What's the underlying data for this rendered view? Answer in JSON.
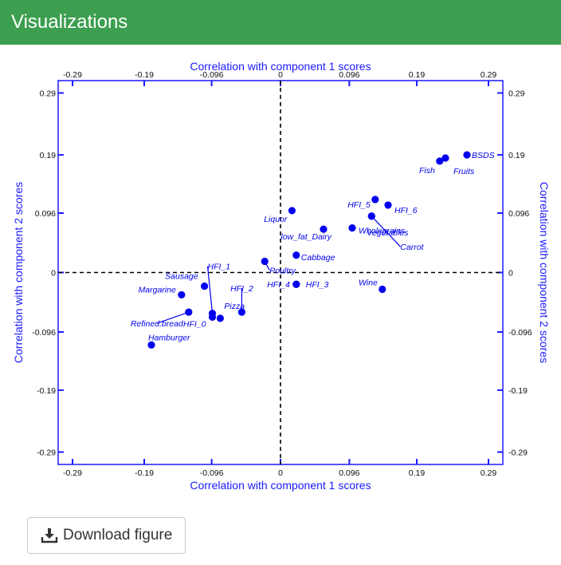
{
  "header": {
    "title": "Visualizations"
  },
  "buttons": {
    "download_label": "Download figure",
    "download_icon": "download-icon"
  },
  "colors": {
    "header_bg": "#3c9e4f",
    "plot_blue": "#1a1aff",
    "point_blue": "#0000ee"
  },
  "chart_data": {
    "type": "scatter",
    "title": "",
    "xlabel_top": "Correlation with component 1 scores",
    "xlabel_bottom": "Correlation with component 1 scores",
    "ylabel_left": "Correlation with component 2 scores",
    "ylabel_right": "Correlation with component 2 scores",
    "xlim": [
      -0.31,
      0.31
    ],
    "ylim": [
      -0.31,
      0.31
    ],
    "x_ticks": [
      -0.29,
      -0.19,
      -0.096,
      0,
      0.096,
      0.19,
      0.29
    ],
    "y_ticks": [
      -0.29,
      -0.19,
      -0.096,
      0,
      0.096,
      0.19,
      0.29
    ],
    "x_tick_labels": [
      "-0.29",
      "-0.19",
      "-0.096",
      "0",
      "0.096",
      "0.19",
      "0.29"
    ],
    "y_tick_labels": [
      "-0.29",
      "-0.19",
      "-0.096",
      "0",
      "0.096",
      "0.19",
      "0.29"
    ],
    "reference_lines": {
      "x": 0,
      "y": 0,
      "style": "dashed"
    },
    "points": [
      {
        "label": "BSDS",
        "x": 0.26,
        "y": 0.19
      },
      {
        "label": "Fish",
        "x": 0.222,
        "y": 0.18
      },
      {
        "label": "Fruits",
        "x": 0.23,
        "y": 0.185
      },
      {
        "label": "HFI_5",
        "x": 0.132,
        "y": 0.118
      },
      {
        "label": "HFI_6",
        "x": 0.15,
        "y": 0.109
      },
      {
        "label": "Vegetables",
        "x": 0.127,
        "y": 0.091
      },
      {
        "label": "Carrot",
        "x": 0.127,
        "y": 0.091
      },
      {
        "label": "Liquor",
        "x": 0.016,
        "y": 0.1
      },
      {
        "label": "low_fat_Dairy",
        "x": 0.06,
        "y": 0.07
      },
      {
        "label": "Wholegrains",
        "x": 0.1,
        "y": 0.072
      },
      {
        "label": "Cabbage",
        "x": 0.022,
        "y": 0.028
      },
      {
        "label": "Poultry",
        "x": -0.022,
        "y": 0.018
      },
      {
        "label": "HFI_4",
        "x": 0.022,
        "y": -0.019
      },
      {
        "label": "HFI_3",
        "x": 0.022,
        "y": -0.019
      },
      {
        "label": "Wine",
        "x": 0.142,
        "y": -0.027
      },
      {
        "label": "Sausage",
        "x": -0.106,
        "y": -0.022
      },
      {
        "label": "HFI_1",
        "x": -0.095,
        "y": -0.066
      },
      {
        "label": "HFI_2",
        "x": -0.054,
        "y": -0.064
      },
      {
        "label": "Pizza",
        "x": -0.084,
        "y": -0.074
      },
      {
        "label": "Margarine",
        "x": -0.138,
        "y": -0.036
      },
      {
        "label": "Refined.bread",
        "x": -0.128,
        "y": -0.064
      },
      {
        "label": "HFI_0",
        "x": -0.095,
        "y": -0.072
      },
      {
        "label": "Hamburger",
        "x": -0.18,
        "y": -0.117
      }
    ],
    "grid": false,
    "legend": "none"
  }
}
